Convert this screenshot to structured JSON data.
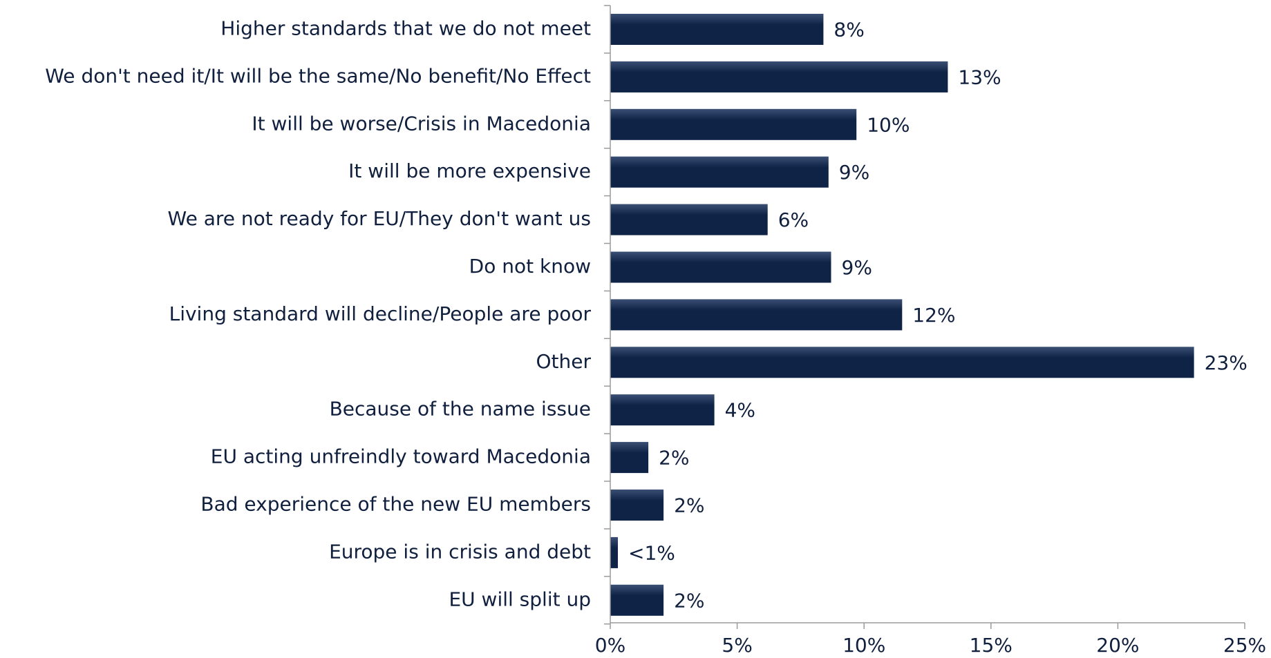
{
  "chart_data": {
    "type": "bar",
    "orientation": "horizontal",
    "categories": [
      "Higher standards that we do not meet",
      "We don't need it/It will be the same/No benefit/No Effect",
      "It will be worse/Crisis in Macedonia",
      "It will be more expensive",
      "We are not ready for EU/They don't want us",
      "Do not know",
      "Living standard will decline/People are poor",
      "Other",
      "Because of the name issue",
      "EU acting unfreindly toward Macedonia",
      "Bad experience of the new EU members",
      "Europe is in crisis and debt",
      "EU will split up"
    ],
    "values": [
      8.4,
      13.3,
      9.7,
      8.6,
      6.2,
      8.7,
      11.5,
      23.0,
      4.1,
      1.5,
      2.1,
      0.3,
      2.1
    ],
    "data_labels": [
      "8%",
      "13%",
      "10%",
      "9%",
      "6%",
      "9%",
      "12%",
      "23%",
      "4%",
      "2%",
      "2%",
      "<1%",
      "2%"
    ],
    "xlim": [
      0,
      25
    ],
    "x_ticks": [
      0,
      5,
      10,
      15,
      20,
      25
    ],
    "x_tick_labels": [
      "0%",
      "5%",
      "10%",
      "15%",
      "20%",
      "25%"
    ],
    "title": "",
    "xlabel": "",
    "ylabel": "",
    "grid": false,
    "legend": "none",
    "bar_color": "#0f2347",
    "bar_highlight_color": "#3a4f73",
    "text_color": "#0f1f3d",
    "axis_color": "#9a9a9a"
  }
}
